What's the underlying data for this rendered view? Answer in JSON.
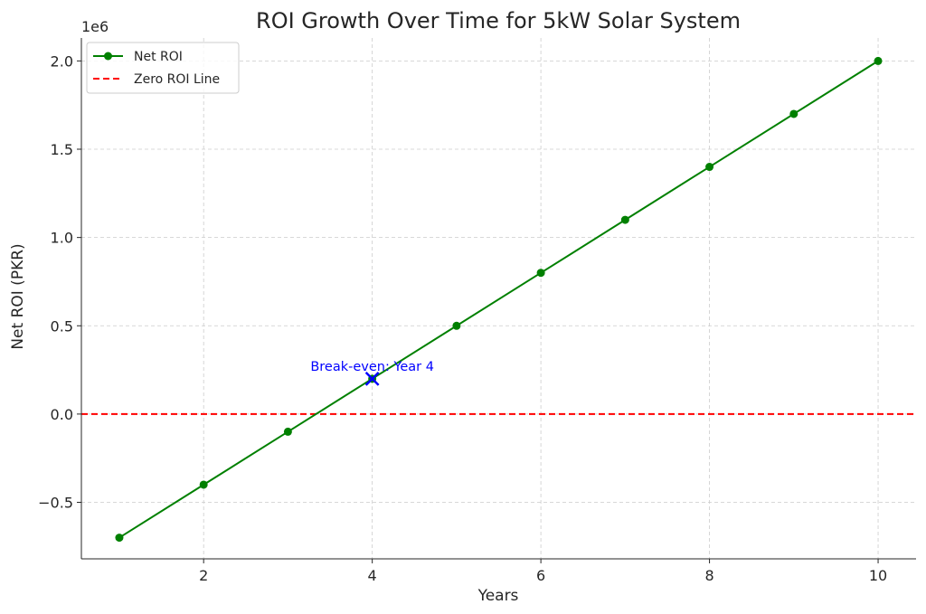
{
  "chart_data": {
    "type": "line",
    "title": "ROI Growth Over Time for 5kW Solar System",
    "xlabel": "Years",
    "ylabel": "Net ROI (PKR)",
    "y_offset_text": "1e6",
    "y_scale_factor": 1000000,
    "xlim": [
      0.55,
      10.45
    ],
    "ylim": [
      -820000,
      2130000
    ],
    "x_ticks": [
      2,
      4,
      6,
      8,
      10
    ],
    "x_tick_labels": [
      "2",
      "4",
      "6",
      "8",
      "10"
    ],
    "y_ticks": [
      -500000,
      0,
      500000,
      1000000,
      1500000,
      2000000
    ],
    "y_tick_labels": [
      "−0.5",
      "0.0",
      "0.5",
      "1.0",
      "1.5",
      "2.0"
    ],
    "grid": true,
    "legend_position": "top-left",
    "series": [
      {
        "name": "Net ROI",
        "color": "#008000",
        "marker": "circle",
        "x": [
          1,
          2,
          3,
          4,
          5,
          6,
          7,
          8,
          9,
          10
        ],
        "y": [
          -700000,
          -400000,
          -100000,
          200000,
          500000,
          800000,
          1100000,
          1400000,
          1700000,
          2000000
        ]
      }
    ],
    "reference_lines": [
      {
        "name": "Zero ROI Line",
        "y": 0,
        "color": "#ff0000",
        "style": "dashed"
      }
    ],
    "annotations": [
      {
        "text": "Break-even: Year 4",
        "x": 4,
        "y": 200000,
        "color": "#0000ff",
        "marker": "x"
      }
    ]
  }
}
